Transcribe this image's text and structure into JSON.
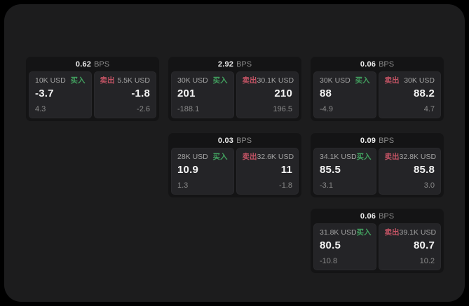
{
  "colors": {
    "buy_green": "#42a05f",
    "sell_red": "#c25364",
    "window_bg": "#1c1c1d",
    "card_bg": "#141415",
    "panel_bg": "#242427"
  },
  "bps_unit": "BPS",
  "buy_label": "买入",
  "sell_label": "卖出",
  "cards": [
    {
      "bps_value": "0.62",
      "buy": {
        "amount": "10K USD",
        "price": "-3.7",
        "delta": "4.3"
      },
      "sell": {
        "amount": "5.5K USD",
        "price": "-1.8",
        "delta": "-2.6"
      }
    },
    {
      "bps_value": "2.92",
      "buy": {
        "amount": "30K USD",
        "price": "201",
        "delta": "-188.1"
      },
      "sell": {
        "amount": "30.1K USD",
        "price": "210",
        "delta": "196.5"
      }
    },
    {
      "bps_value": "0.06",
      "buy": {
        "amount": "30K USD",
        "price": "88",
        "delta": "-4.9"
      },
      "sell": {
        "amount": "30K USD",
        "price": "88.2",
        "delta": "4.7"
      }
    },
    {
      "bps_value": "0.03",
      "buy": {
        "amount": "28K USD",
        "price": "10.9",
        "delta": "1.3"
      },
      "sell": {
        "amount": "32.6K USD",
        "price": "11",
        "delta": "-1.8"
      }
    },
    {
      "bps_value": "0.09",
      "buy": {
        "amount": "34.1K USD",
        "price": "85.5",
        "delta": "-3.1"
      },
      "sell": {
        "amount": "32.8K USD",
        "price": "85.8",
        "delta": "3.0"
      }
    },
    {
      "bps_value": "0.06",
      "buy": {
        "amount": "31.8K USD",
        "price": "80.5",
        "delta": "-10.8"
      },
      "sell": {
        "amount": "39.1K USD",
        "price": "80.7",
        "delta": "10.2"
      }
    }
  ]
}
